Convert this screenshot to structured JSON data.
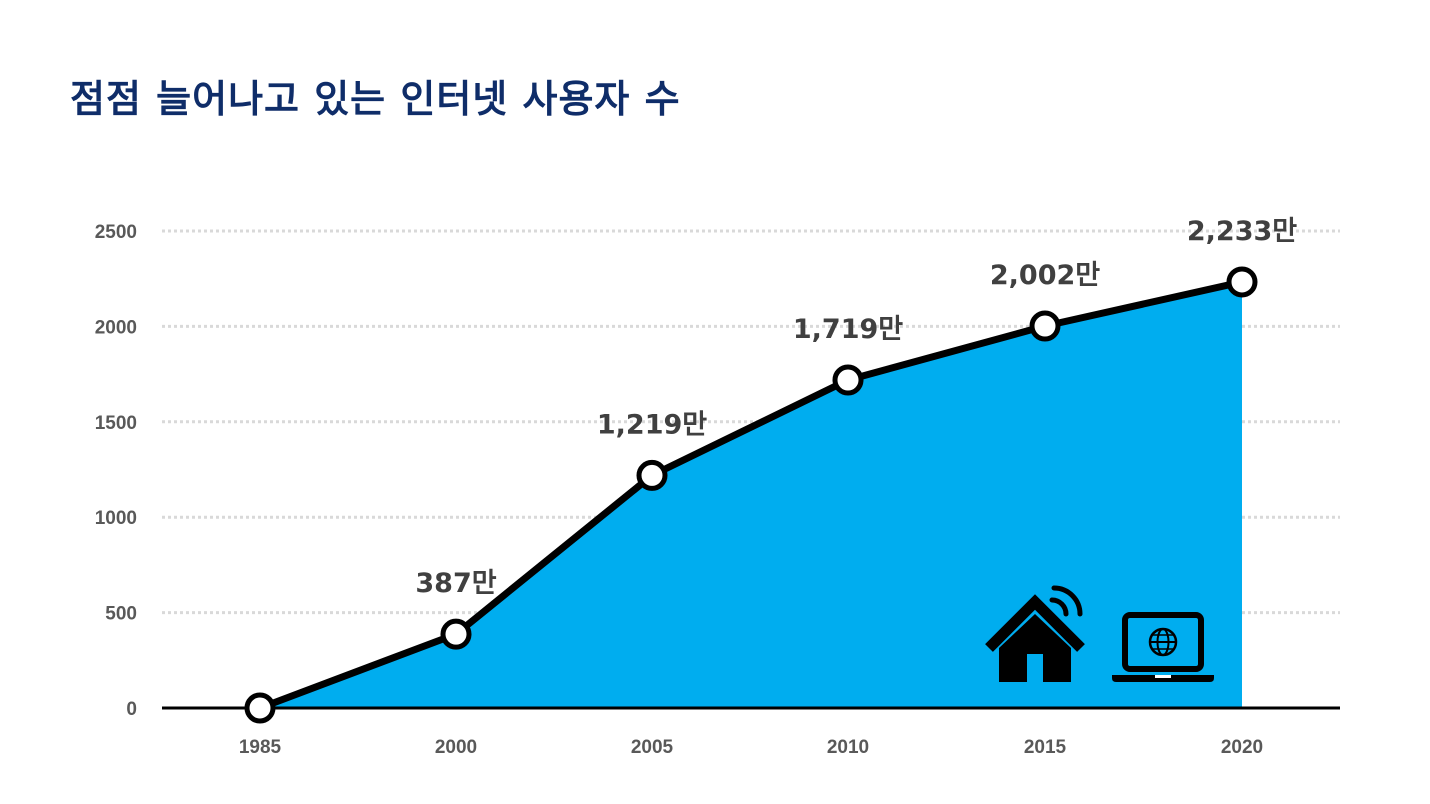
{
  "title": "점점 늘어나고 있는 인터넷 사용자 수",
  "colors": {
    "title": "#0f2d69",
    "area": "#00adef",
    "line": "#000000",
    "grid": "#d9d9d9",
    "tick": "#595959",
    "label": "#404040"
  },
  "icons": [
    "smart-home-wifi-icon",
    "laptop-globe-icon"
  ],
  "chart_data": {
    "type": "area",
    "title": "점점 늘어나고 있는 인터넷 사용자 수",
    "xlabel": "",
    "ylabel": "",
    "categories": [
      "1985",
      "2000",
      "2005",
      "2010",
      "2015",
      "2020"
    ],
    "values": [
      0,
      387,
      1219,
      1719,
      2002,
      2233
    ],
    "data_labels": [
      "",
      "387만",
      "1,219만",
      "1,719만",
      "2,002만",
      "2,233만"
    ],
    "yticks": [
      0,
      500,
      1000,
      1500,
      2000,
      2500
    ],
    "ylim": [
      0,
      2500
    ],
    "grid": true,
    "legend": "none",
    "markers": "circle"
  }
}
